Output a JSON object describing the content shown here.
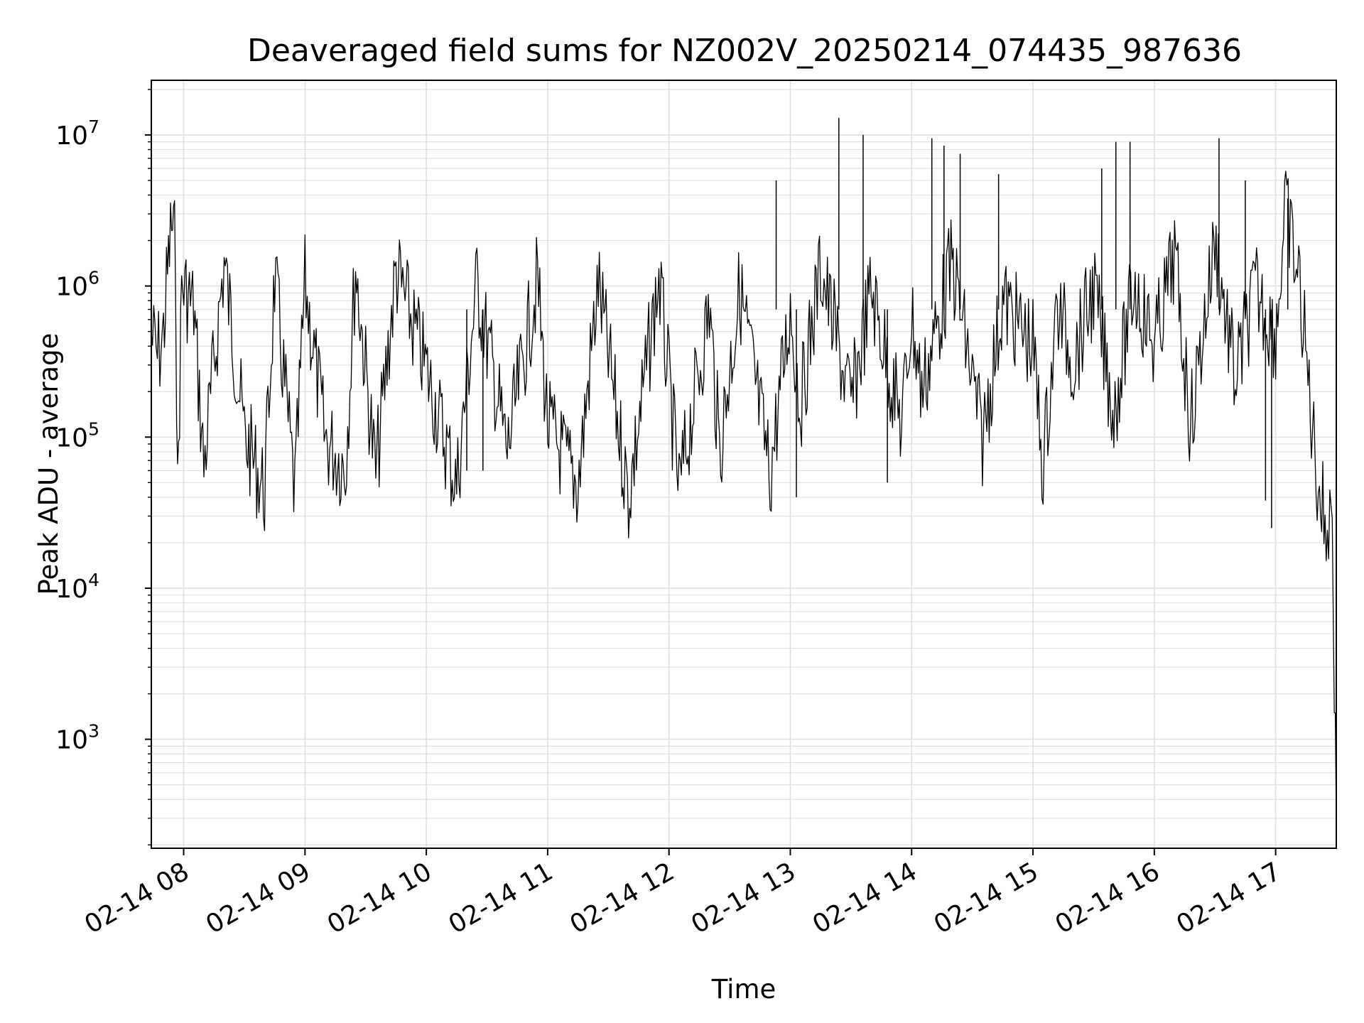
{
  "chart_data": {
    "type": "line",
    "title": "Deaveraged field sums for NZ002V_20250214_074435_987636",
    "xlabel": "Time",
    "ylabel": "Peak ADU - average",
    "y_scale": "log",
    "ylim": [
      190,
      23000000
    ],
    "xlim": [
      "02-14 07:44",
      "02-14 17:30"
    ],
    "grid": true,
    "line_color": "#000000",
    "grid_color": "#e0e0e0",
    "x_ticks": [
      "02-14 08",
      "02-14 09",
      "02-14 10",
      "02-14 11",
      "02-14 12",
      "02-14 13",
      "02-14 14",
      "02-14 15",
      "02-14 16",
      "02-14 17"
    ],
    "y_ticks": [
      {
        "value": 1000,
        "base": "10",
        "exp": "3"
      },
      {
        "value": 10000,
        "base": "10",
        "exp": "4"
      },
      {
        "value": 100000,
        "base": "10",
        "exp": "5"
      },
      {
        "value": 1000000,
        "base": "10",
        "exp": "6"
      },
      {
        "value": 10000000,
        "base": "10",
        "exp": "7"
      }
    ],
    "series": [
      {
        "points": [
          [
            "02-14 07:44",
            600000
          ],
          [
            "02-14 07:47",
            420000
          ],
          [
            "02-14 07:50",
            600000
          ],
          [
            "02-14 07:52",
            1500000
          ],
          [
            "02-14 07:54",
            3200000
          ],
          [
            "02-14 07:56",
            2100000
          ],
          [
            "02-14 07:57",
            47000
          ],
          [
            "02-14 07:59",
            1300000
          ],
          [
            "02-14 08:05",
            900000
          ],
          [
            "02-14 08:10",
            80000
          ],
          [
            "02-14 08:20",
            1800000
          ],
          [
            "02-14 08:30",
            130000
          ],
          [
            "02-14 08:40",
            55000
          ],
          [
            "02-14 08:45",
            1400000
          ],
          [
            "02-14 08:55",
            52000
          ],
          [
            "02-14 09:00",
            1300000
          ],
          [
            "02-14 09:10",
            120000
          ],
          [
            "02-14 09:20",
            80000
          ],
          [
            "02-14 09:25",
            1700000
          ],
          [
            "02-14 09:35",
            70000
          ],
          [
            "02-14 09:45",
            1600000
          ],
          [
            "02-14 10:00",
            350000
          ],
          [
            "02-14 10:15",
            60000
          ],
          [
            "02-14 10:25",
            1300000
          ],
          [
            "02-14 10:40",
            100000
          ],
          [
            "02-14 10:55",
            1400000
          ],
          [
            "02-14 11:00",
            150000
          ],
          [
            "02-14 11:15",
            60000
          ],
          [
            "02-14 11:25",
            1300000
          ],
          [
            "02-14 11:40",
            50000
          ],
          [
            "02-14 11:55",
            1400000
          ],
          [
            "02-14 12:05",
            55000
          ],
          [
            "02-14 12:20",
            900000
          ],
          [
            "02-14 12:25",
            100000
          ],
          [
            "02-14 12:35",
            1200000
          ],
          [
            "02-14 12:50",
            70000
          ],
          [
            "02-14 13:00",
            900000
          ],
          [
            "02-14 13:05",
            200000
          ],
          [
            "02-14 13:15",
            1700000
          ],
          [
            "02-14 13:30",
            200000
          ],
          [
            "02-14 13:40",
            1200000
          ],
          [
            "02-14 13:55",
            150000
          ],
          [
            "02-14 14:00",
            800000
          ],
          [
            "02-14 14:05",
            250000
          ],
          [
            "02-14 14:20",
            1800000
          ],
          [
            "02-14 14:35",
            120000
          ],
          [
            "02-14 14:45",
            1000000
          ],
          [
            "02-14 15:00",
            500000
          ],
          [
            "02-14 15:05",
            80000
          ],
          [
            "02-14 15:12",
            900000
          ],
          [
            "02-14 15:20",
            400000
          ],
          [
            "02-14 15:30",
            1200000
          ],
          [
            "02-14 15:40",
            180000
          ],
          [
            "02-14 15:50",
            1300000
          ],
          [
            "02-14 16:00",
            500000
          ],
          [
            "02-14 16:10",
            2000000
          ],
          [
            "02-14 16:18",
            150000
          ],
          [
            "02-14 16:30",
            2500000
          ],
          [
            "02-14 16:40",
            300000
          ],
          [
            "02-14 16:50",
            1200000
          ],
          [
            "02-14 17:00",
            600000
          ],
          [
            "02-14 17:05",
            4000000
          ],
          [
            "02-14 17:12",
            1200000
          ],
          [
            "02-14 17:20",
            80000
          ],
          [
            "02-14 17:25",
            30000
          ],
          [
            "02-14 17:28",
            45000
          ],
          [
            "02-14 17:30",
            280
          ]
        ]
      }
    ],
    "spikes": [
      [
        "02-14 12:53",
        5000000
      ],
      [
        "02-14 13:03",
        40000
      ],
      [
        "02-14 13:24",
        13000000
      ],
      [
        "02-14 13:36",
        10000000
      ],
      [
        "02-14 13:48",
        50000
      ],
      [
        "02-14 14:10",
        9500000
      ],
      [
        "02-14 14:16",
        8500000
      ],
      [
        "02-14 14:24",
        7500000
      ],
      [
        "02-14 14:43",
        5500000
      ],
      [
        "02-14 15:34",
        6000000
      ],
      [
        "02-14 15:41",
        9000000
      ],
      [
        "02-14 15:48",
        9000000
      ],
      [
        "02-14 16:32",
        9500000
      ],
      [
        "02-14 16:45",
        5000000
      ],
      [
        "02-14 16:55",
        38000
      ],
      [
        "02-14 16:58",
        25000
      ],
      [
        "02-14 17:06",
        3800000
      ],
      [
        "02-14 10:20",
        60000
      ],
      [
        "02-14 10:28",
        60000
      ]
    ]
  }
}
